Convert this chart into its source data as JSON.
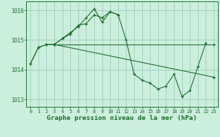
{
  "background_color": "#cceedd",
  "grid_color": "#99ccbb",
  "line_color": "#1a6b2a",
  "xlabel": "Graphe pression niveau de la mer (hPa)",
  "ylim": [
    1012.75,
    1016.3
  ],
  "xlim": [
    -0.5,
    23.5
  ],
  "yticks": [
    1013,
    1014,
    1015,
    1016
  ],
  "xticks": [
    0,
    1,
    2,
    3,
    4,
    5,
    6,
    7,
    8,
    9,
    10,
    11,
    12,
    13,
    14,
    15,
    16,
    17,
    18,
    19,
    20,
    21,
    22,
    23
  ],
  "line1_x": [
    0,
    1,
    2,
    3,
    4,
    5,
    6,
    7,
    8,
    9,
    10,
    11,
    12,
    13,
    14,
    15,
    16,
    17,
    18,
    19,
    20,
    21,
    22
  ],
  "line1_y": [
    1014.2,
    1014.75,
    1014.85,
    1014.85,
    1015.05,
    1015.25,
    1015.45,
    1015.75,
    1016.05,
    1015.6,
    1015.95,
    1015.85,
    1015.0,
    1013.85,
    1013.65,
    1013.55,
    1013.35,
    1013.45,
    1013.85,
    1013.1,
    1013.3,
    1014.1,
    1014.9
  ],
  "line2_x": [
    0,
    1,
    2,
    3,
    4,
    5,
    6,
    7,
    8,
    9,
    10,
    11
  ],
  "line2_y": [
    1014.2,
    1014.75,
    1014.85,
    1014.85,
    1015.05,
    1015.2,
    1015.5,
    1015.55,
    1015.85,
    1015.75,
    1015.95,
    1015.85
  ],
  "line3_x": [
    3,
    23
  ],
  "line3_y": [
    1014.85,
    1014.85
  ],
  "line4_x": [
    3,
    23
  ],
  "line4_y": [
    1014.85,
    1013.75
  ]
}
